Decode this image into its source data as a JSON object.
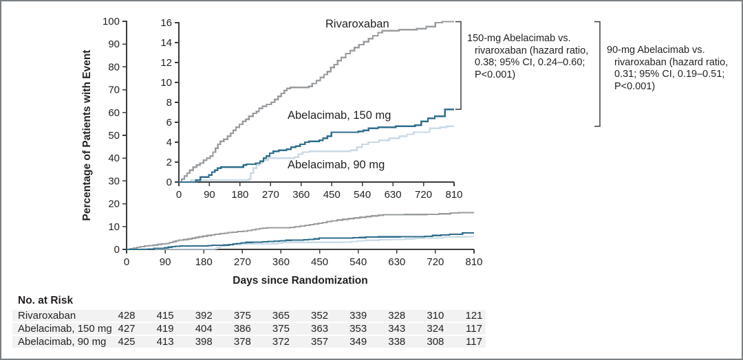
{
  "frame": {
    "border_color": "#7a7f82",
    "background": "#ffffff"
  },
  "colors": {
    "axis": "#3b3b3c",
    "text": "#231f20",
    "bracket": "#4a4a4a",
    "risk_band": "#f2f2f2"
  },
  "chart_data": {
    "type": "line",
    "step": true,
    "title": "",
    "xlabel": "Days since Randomization",
    "ylabel": "Percentage of Patients with Event",
    "x_ticks": [
      0,
      90,
      180,
      270,
      360,
      450,
      540,
      630,
      720,
      810
    ],
    "main_axis": {
      "xlim": [
        0,
        810
      ],
      "ylim": [
        0,
        100
      ],
      "yticks": [
        0,
        10,
        20,
        30,
        40,
        50,
        60,
        70,
        80,
        90,
        100
      ]
    },
    "inset_axis": {
      "xlim": [
        0,
        810
      ],
      "ylim": [
        0,
        16
      ],
      "yticks": [
        0,
        2,
        4,
        6,
        8,
        10,
        12,
        14,
        16
      ]
    },
    "grid": false,
    "legend_position": "inline-labels",
    "series": [
      {
        "name": "Rivaroxaban",
        "color": "#9a9da0",
        "points": [
          [
            0,
            0
          ],
          [
            8,
            0.3
          ],
          [
            16,
            0.6
          ],
          [
            24,
            0.9
          ],
          [
            32,
            1.2
          ],
          [
            42,
            1.5
          ],
          [
            52,
            1.7
          ],
          [
            62,
            1.9
          ],
          [
            72,
            2.2
          ],
          [
            82,
            2.4
          ],
          [
            92,
            2.6
          ],
          [
            100,
            3.0
          ],
          [
            108,
            3.4
          ],
          [
            115,
            3.8
          ],
          [
            122,
            4.1
          ],
          [
            132,
            4.3
          ],
          [
            143,
            4.6
          ],
          [
            152,
            4.9
          ],
          [
            160,
            5.2
          ],
          [
            168,
            5.5
          ],
          [
            178,
            5.8
          ],
          [
            188,
            6.1
          ],
          [
            197,
            6.3
          ],
          [
            206,
            6.6
          ],
          [
            218,
            6.9
          ],
          [
            228,
            7.1
          ],
          [
            236,
            7.4
          ],
          [
            246,
            7.6
          ],
          [
            258,
            7.8
          ],
          [
            272,
            8.0
          ],
          [
            282,
            8.3
          ],
          [
            292,
            8.6
          ],
          [
            301,
            8.9
          ],
          [
            310,
            9.2
          ],
          [
            318,
            9.4
          ],
          [
            328,
            9.5
          ],
          [
            382,
            9.6
          ],
          [
            392,
            9.9
          ],
          [
            405,
            10.2
          ],
          [
            416,
            10.5
          ],
          [
            427,
            10.8
          ],
          [
            437,
            11.1
          ],
          [
            447,
            11.5
          ],
          [
            457,
            11.8
          ],
          [
            467,
            12.2
          ],
          [
            478,
            12.5
          ],
          [
            491,
            12.9
          ],
          [
            504,
            13.2
          ],
          [
            517,
            13.5
          ],
          [
            530,
            13.8
          ],
          [
            544,
            14.1
          ],
          [
            558,
            14.4
          ],
          [
            571,
            14.7
          ],
          [
            586,
            15.0
          ],
          [
            599,
            15.2
          ],
          [
            648,
            15.3
          ],
          [
            700,
            15.4
          ],
          [
            728,
            15.6
          ],
          [
            755,
            16.0
          ],
          [
            775,
            16.1
          ],
          [
            810,
            16.1
          ]
        ]
      },
      {
        "name": "Abelacimab, 150 mg",
        "color": "#2e6e8c",
        "points": [
          [
            0,
            0
          ],
          [
            50,
            0.2
          ],
          [
            63,
            0.5
          ],
          [
            88,
            0.7
          ],
          [
            97,
            1.0
          ],
          [
            106,
            1.2
          ],
          [
            114,
            1.4
          ],
          [
            124,
            1.5
          ],
          [
            183,
            1.5
          ],
          [
            190,
            1.7
          ],
          [
            199,
            1.8
          ],
          [
            226,
            1.9
          ],
          [
            239,
            2.1
          ],
          [
            249,
            2.4
          ],
          [
            257,
            2.6
          ],
          [
            267,
            2.9
          ],
          [
            278,
            3.1
          ],
          [
            294,
            3.2
          ],
          [
            317,
            3.3
          ],
          [
            330,
            3.5
          ],
          [
            344,
            3.6
          ],
          [
            357,
            3.8
          ],
          [
            371,
            4.0
          ],
          [
            383,
            4.1
          ],
          [
            413,
            4.2
          ],
          [
            424,
            4.4
          ],
          [
            437,
            4.6
          ],
          [
            449,
            5.0
          ],
          [
            528,
            5.1
          ],
          [
            543,
            5.2
          ],
          [
            558,
            5.4
          ],
          [
            586,
            5.5
          ],
          [
            638,
            5.6
          ],
          [
            695,
            5.7
          ],
          [
            713,
            6.1
          ],
          [
            733,
            6.4
          ],
          [
            753,
            6.6
          ],
          [
            783,
            7.3
          ],
          [
            810,
            7.3
          ]
        ]
      },
      {
        "name": "Abelacimab, 90 mg",
        "color": "#c9dae5",
        "points": [
          [
            0,
            0
          ],
          [
            35,
            0.2
          ],
          [
            205,
            0.3
          ],
          [
            211,
            0.9
          ],
          [
            219,
            1.4
          ],
          [
            228,
            1.7
          ],
          [
            238,
            1.9
          ],
          [
            247,
            2.2
          ],
          [
            263,
            2.4
          ],
          [
            340,
            2.5
          ],
          [
            352,
            2.8
          ],
          [
            364,
            3.0
          ],
          [
            383,
            3.1
          ],
          [
            505,
            3.2
          ],
          [
            524,
            3.5
          ],
          [
            539,
            3.8
          ],
          [
            557,
            4.0
          ],
          [
            589,
            4.2
          ],
          [
            619,
            4.4
          ],
          [
            649,
            4.6
          ],
          [
            671,
            4.8
          ],
          [
            691,
            5.0
          ],
          [
            738,
            5.4
          ],
          [
            769,
            5.5
          ],
          [
            788,
            5.6
          ],
          [
            810,
            5.6
          ]
        ]
      }
    ],
    "annotations": [
      {
        "id": "abelacimab-150-vs-rivaroxaban",
        "lines": [
          "150-mg Abelacimab vs.",
          "rivaroxaban (hazard ratio,",
          "0.38; 95% CI, 0.24–0.60;",
          "P<0.001)"
        ],
        "bracket": {
          "top_value": 16.1,
          "bottom_value": 7.3
        }
      },
      {
        "id": "abelacimab-90-vs-rivaroxaban",
        "lines": [
          "90-mg Abelacimab vs.",
          "rivaroxaban (hazard ratio,",
          "0.31; 95% CI, 0.19–0.51;",
          "P<0.001)"
        ],
        "bracket": {
          "top_value": 16.1,
          "bottom_value": 5.6
        }
      }
    ]
  },
  "risk_table": {
    "title": "No. at Risk",
    "days": [
      0,
      90,
      180,
      270,
      360,
      450,
      540,
      630,
      720,
      810
    ],
    "rows": [
      {
        "label": "Rivaroxaban",
        "values": [
          428,
          415,
          392,
          375,
          365,
          352,
          339,
          328,
          310,
          121
        ]
      },
      {
        "label": "Abelacimab, 150 mg",
        "values": [
          427,
          419,
          404,
          386,
          375,
          363,
          353,
          343,
          324,
          117
        ]
      },
      {
        "label": "Abelacimab, 90 mg",
        "values": [
          425,
          413,
          398,
          378,
          372,
          357,
          349,
          338,
          308,
          117
        ]
      }
    ]
  }
}
